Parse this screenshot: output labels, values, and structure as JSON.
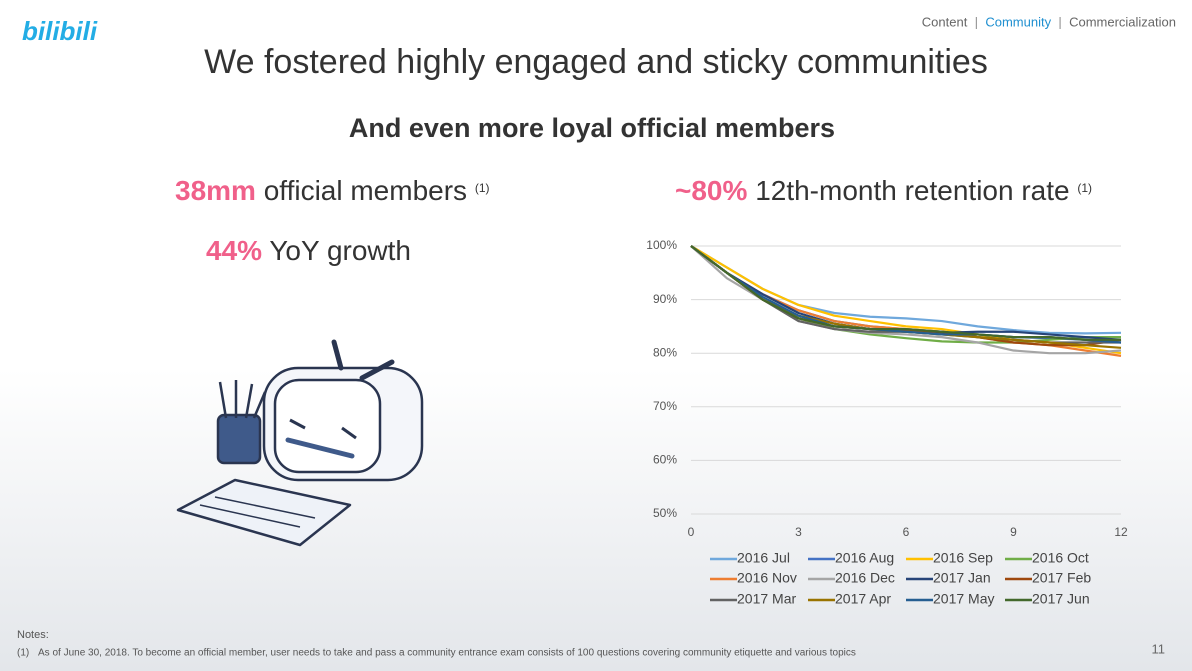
{
  "header": {
    "logo": "bilibili",
    "nav": [
      "Content",
      "Community",
      "Commercialization"
    ],
    "nav_active": 1
  },
  "title": "We fostered highly engaged and sticky communities",
  "subtitle": "And even more loyal official members",
  "stats": [
    {
      "highlight": "38mm",
      "text": "official members",
      "note": "(1)"
    },
    {
      "highlight": "44%",
      "text": "YoY growth"
    }
  ],
  "chart_data": {
    "type": "line",
    "title_highlight": "~80%",
    "title": "12th-month retention rate",
    "title_note": "(1)",
    "x": [
      0,
      1,
      2,
      3,
      4,
      5,
      6,
      7,
      8,
      9,
      10,
      11,
      12
    ],
    "xlim": [
      0,
      12
    ],
    "xticks": [
      0,
      3,
      6,
      9,
      12
    ],
    "ylim": [
      50,
      100
    ],
    "yticks": [
      {
        "value": 50,
        "label": "50%"
      },
      {
        "value": 60,
        "label": "60%"
      },
      {
        "value": 70,
        "label": "70%"
      },
      {
        "value": 80,
        "label": "80%"
      },
      {
        "value": 90,
        "label": "90%"
      },
      {
        "value": 100,
        "label": "100%"
      }
    ],
    "grid": true,
    "legend": "bottom",
    "series": [
      {
        "name": "2016 Jul",
        "color": "#6fa8dc",
        "values": [
          100,
          96,
          92,
          89,
          87.5,
          86.8,
          86.5,
          86,
          85,
          84.3,
          83.8,
          83.7,
          83.8
        ]
      },
      {
        "name": "2016 Aug",
        "color": "#4472c4",
        "values": [
          100,
          95,
          91,
          88,
          86,
          85,
          84.5,
          84,
          83.5,
          83,
          82.8,
          82.5,
          82
        ]
      },
      {
        "name": "2016 Sep",
        "color": "#ffc000",
        "values": [
          100,
          96,
          92,
          89,
          87,
          86,
          85,
          84.5,
          83.5,
          82.5,
          82,
          81,
          80
        ]
      },
      {
        "name": "2016 Oct",
        "color": "#70ad47",
        "values": [
          100,
          95,
          90,
          86.5,
          84.5,
          83.5,
          82.8,
          82.2,
          82,
          82,
          82.5,
          83,
          83
        ]
      },
      {
        "name": "2016 Nov",
        "color": "#ed7d31",
        "values": [
          100,
          95,
          91,
          88,
          86,
          85,
          84.5,
          84,
          83,
          82,
          81.5,
          80.5,
          79.5
        ]
      },
      {
        "name": "2016 Dec",
        "color": "#a5a5a5",
        "values": [
          100,
          94,
          90,
          86,
          84.5,
          83.8,
          83.5,
          83,
          82,
          80.5,
          80,
          80,
          80.5
        ]
      },
      {
        "name": "2017 Jan",
        "color": "#264478",
        "values": [
          100,
          95,
          91,
          87.5,
          85.5,
          84.5,
          84,
          83.8,
          84,
          84,
          83.5,
          83,
          82.5
        ]
      },
      {
        "name": "2017 Feb",
        "color": "#9e480e",
        "values": [
          100,
          95,
          90,
          86.5,
          85,
          84.5,
          84.3,
          84,
          83,
          82,
          81.5,
          81.5,
          82.5
        ]
      },
      {
        "name": "2017 Mar",
        "color": "#636363",
        "values": [
          100,
          95,
          90,
          86,
          84.5,
          84,
          84,
          83.5,
          83,
          82.5,
          82,
          82,
          82
        ]
      },
      {
        "name": "2017 Apr",
        "color": "#997300",
        "values": [
          100,
          95,
          90,
          87,
          85.5,
          84.5,
          84,
          83.5,
          83,
          82.5,
          82,
          81.5,
          81
        ]
      },
      {
        "name": "2017 May",
        "color": "#255e91",
        "values": [
          100,
          95,
          90.5,
          87,
          85,
          84.5,
          84,
          83.5,
          83.5,
          83,
          83,
          82.5,
          82
        ]
      },
      {
        "name": "2017 Jun",
        "color": "#43682b",
        "values": [
          100,
          95,
          90,
          86.5,
          85,
          84.5,
          84.5,
          84,
          83.5,
          83,
          83,
          82.5,
          82.5
        ]
      }
    ]
  },
  "footer": {
    "notes_label": "Notes:",
    "note_marker": "(1)",
    "note": "As of June 30, 2018. To become an official member, user needs to take and pass a community entrance exam consists of 100 questions covering community etiquette and various topics",
    "page": "11"
  }
}
